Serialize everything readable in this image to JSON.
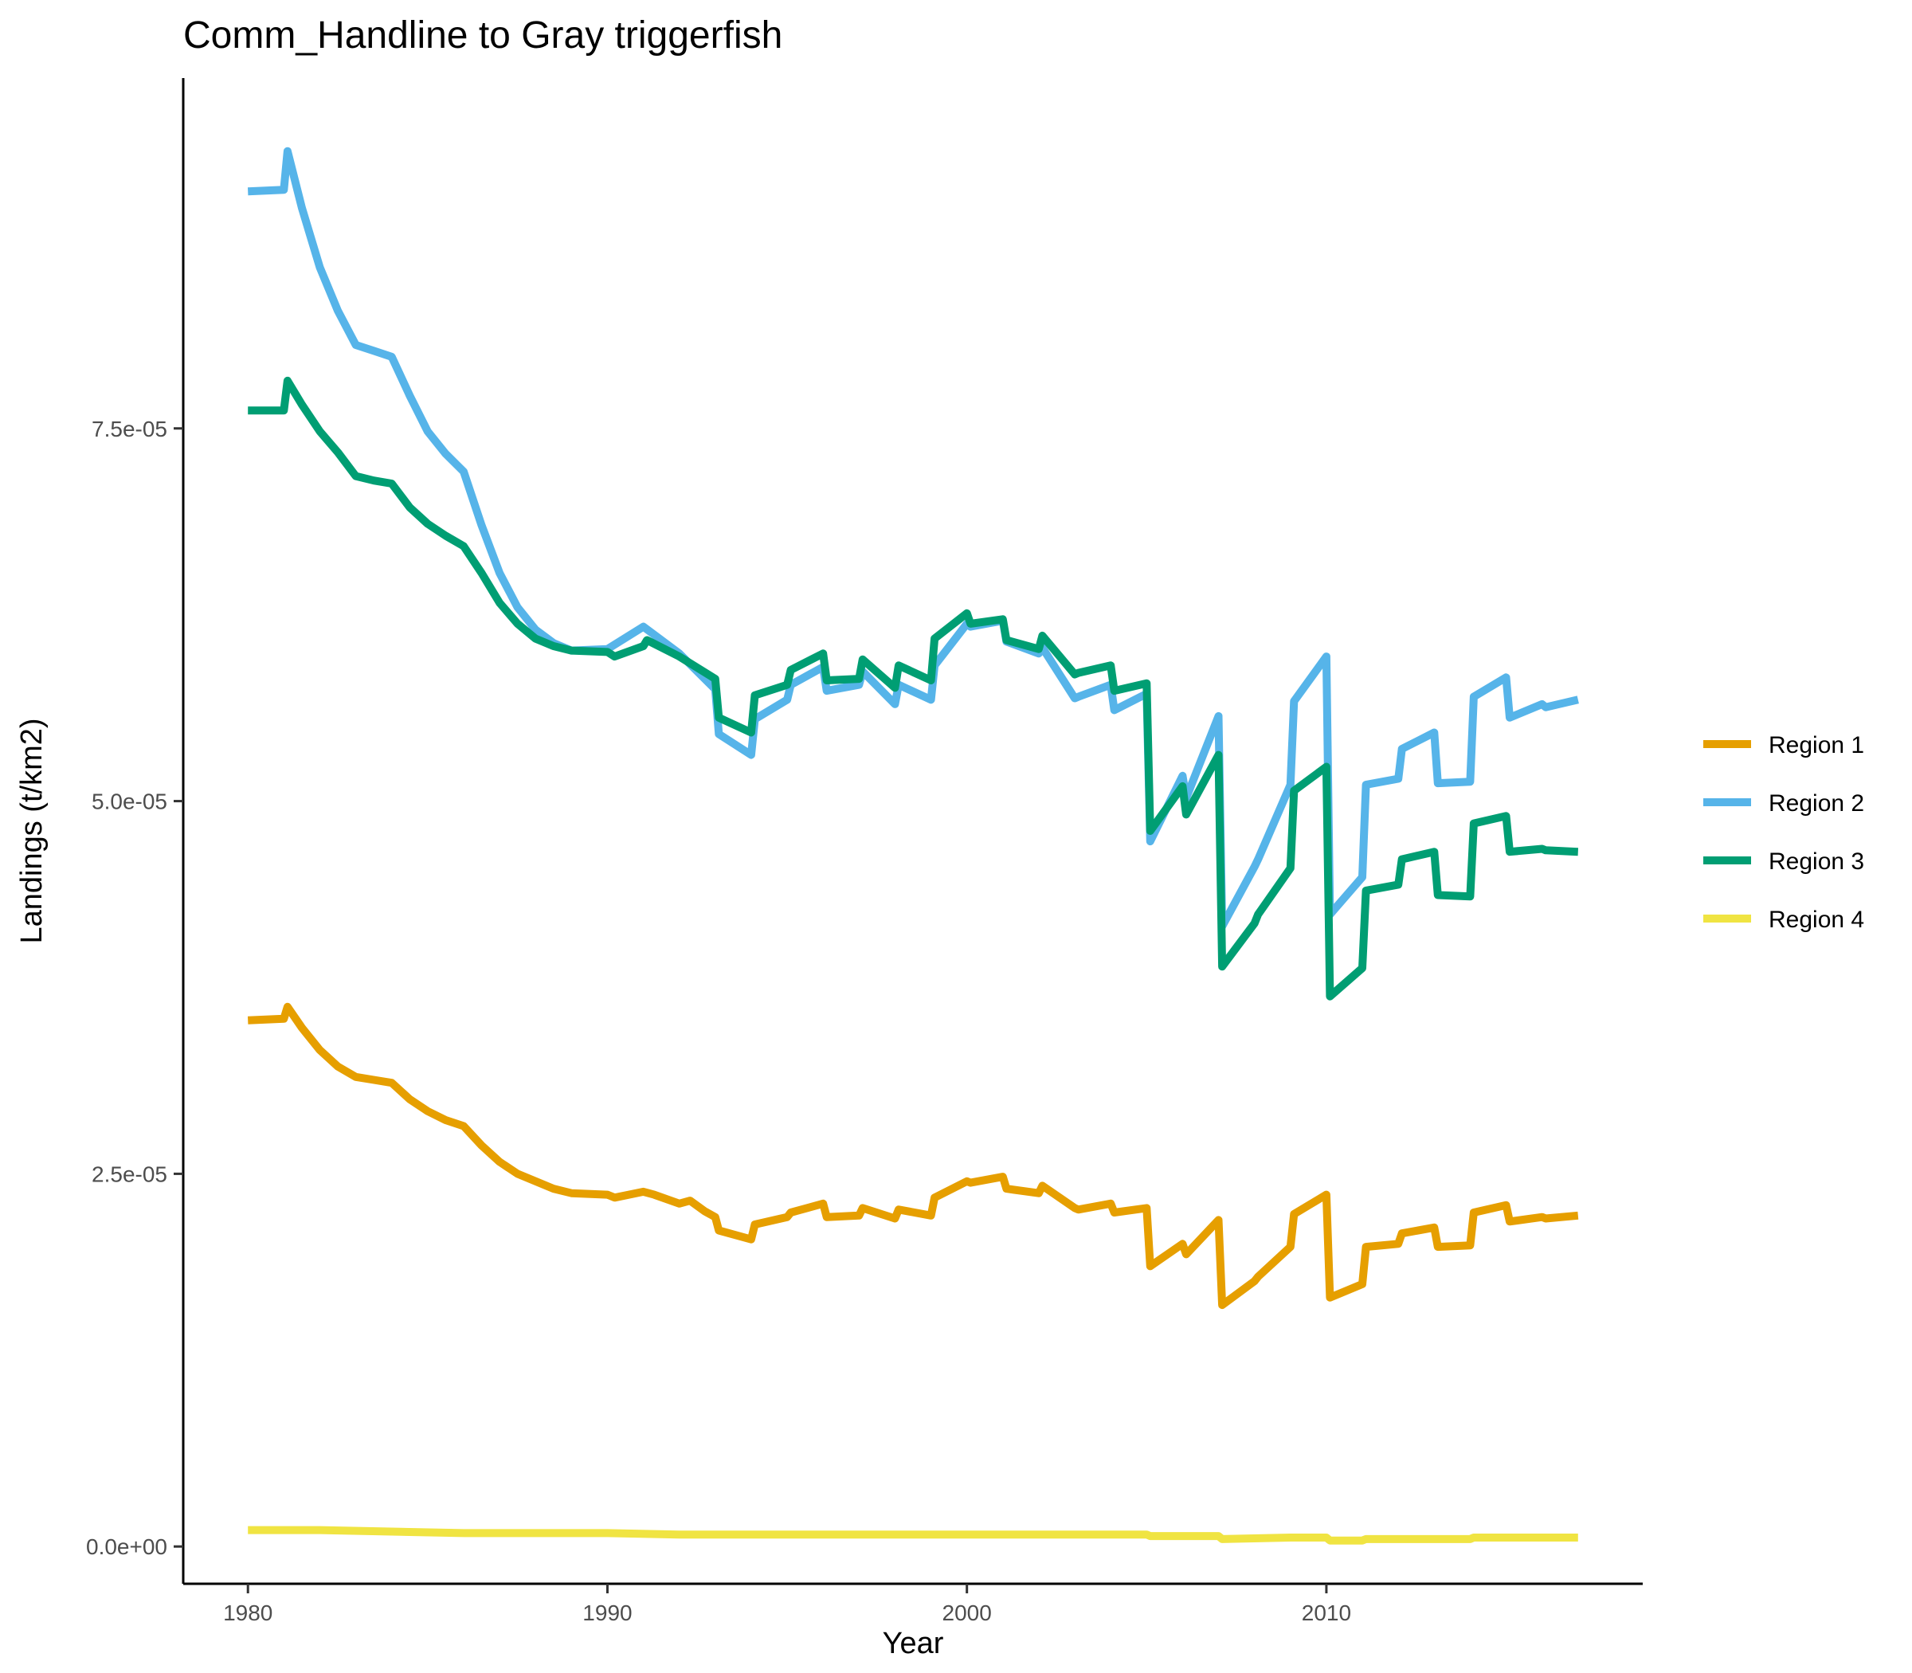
{
  "chart_data": {
    "type": "line",
    "title": "Comm_Handline to Gray triggerfish",
    "xlabel": "Year",
    "ylabel": "Landings (t/km2)",
    "xlim": [
      1978.2,
      2018.8
    ],
    "ylim": [
      -2.5e-06,
      9.85e-05
    ],
    "x_ticks": [
      {
        "value": 1980,
        "label": "1980"
      },
      {
        "value": 1990,
        "label": "1990"
      },
      {
        "value": 2000,
        "label": "2000"
      },
      {
        "value": 2010,
        "label": "2010"
      }
    ],
    "y_ticks": [
      {
        "value": 0,
        "label": "0.0e+00"
      },
      {
        "value": 2.5e-05,
        "label": "2.5e-05"
      },
      {
        "value": 5e-05,
        "label": "5.0e-05"
      },
      {
        "value": 7.5e-05,
        "label": "7.5e-05"
      }
    ],
    "grid": false,
    "legend_position": "right",
    "series": [
      {
        "name": "Region 1",
        "color": "#E69F00",
        "points": [
          [
            1980,
            3.53e-05
          ],
          [
            1981,
            3.54e-05
          ],
          [
            1981.1,
            3.62e-05
          ],
          [
            1981.5,
            3.48e-05
          ],
          [
            1982,
            3.33e-05
          ],
          [
            1982.5,
            3.22e-05
          ],
          [
            1983,
            3.15e-05
          ],
          [
            1983.5,
            3.13e-05
          ],
          [
            1984,
            3.11e-05
          ],
          [
            1984.5,
            3e-05
          ],
          [
            1985,
            2.92e-05
          ],
          [
            1985.5,
            2.86e-05
          ],
          [
            1986,
            2.82e-05
          ],
          [
            1986.5,
            2.69e-05
          ],
          [
            1987,
            2.58e-05
          ],
          [
            1987.5,
            2.5e-05
          ],
          [
            1988,
            2.45e-05
          ],
          [
            1988.5,
            2.4e-05
          ],
          [
            1989,
            2.37e-05
          ],
          [
            1990,
            2.36e-05
          ],
          [
            1990.2,
            2.34e-05
          ],
          [
            1991,
            2.38e-05
          ],
          [
            1991.3,
            2.36e-05
          ],
          [
            1992,
            2.3e-05
          ],
          [
            1992.3,
            2.32e-05
          ],
          [
            1992.7,
            2.25e-05
          ],
          [
            1993,
            2.21e-05
          ],
          [
            1993.1,
            2.12e-05
          ],
          [
            1994,
            2.06e-05
          ],
          [
            1994.1,
            2.16e-05
          ],
          [
            1995,
            2.21e-05
          ],
          [
            1995.1,
            2.24e-05
          ],
          [
            1996,
            2.3e-05
          ],
          [
            1996.1,
            2.21e-05
          ],
          [
            1997,
            2.22e-05
          ],
          [
            1997.1,
            2.27e-05
          ],
          [
            1998,
            2.2e-05
          ],
          [
            1998.1,
            2.26e-05
          ],
          [
            1999,
            2.22e-05
          ],
          [
            1999.1,
            2.34e-05
          ],
          [
            2000,
            2.45e-05
          ],
          [
            2000.1,
            2.44e-05
          ],
          [
            2001,
            2.48e-05
          ],
          [
            2001.1,
            2.4e-05
          ],
          [
            2002,
            2.37e-05
          ],
          [
            2002.1,
            2.42e-05
          ],
          [
            2003,
            2.27e-05
          ],
          [
            2003.1,
            2.26e-05
          ],
          [
            2004,
            2.3e-05
          ],
          [
            2004.1,
            2.24e-05
          ],
          [
            2005,
            2.27e-05
          ],
          [
            2005.1,
            1.88e-05
          ],
          [
            2006,
            2.03e-05
          ],
          [
            2006.1,
            1.96e-05
          ],
          [
            2007,
            2.19e-05
          ],
          [
            2007.1,
            1.62e-05
          ],
          [
            2008,
            1.78e-05
          ],
          [
            2008.1,
            1.81e-05
          ],
          [
            2009,
            2.01e-05
          ],
          [
            2009.1,
            2.23e-05
          ],
          [
            2010,
            2.36e-05
          ],
          [
            2010.1,
            1.67e-05
          ],
          [
            2011,
            1.76e-05
          ],
          [
            2011.1,
            2.01e-05
          ],
          [
            2012,
            2.03e-05
          ],
          [
            2012.1,
            2.1e-05
          ],
          [
            2013,
            2.14e-05
          ],
          [
            2013.1,
            2.01e-05
          ],
          [
            2014,
            2.02e-05
          ],
          [
            2014.1,
            2.24e-05
          ],
          [
            2015,
            2.29e-05
          ],
          [
            2015.1,
            2.18e-05
          ],
          [
            2016,
            2.21e-05
          ],
          [
            2016.1,
            2.2e-05
          ],
          [
            2017,
            2.22e-05
          ]
        ]
      },
      {
        "name": "Region 2",
        "color": "#56B4E9",
        "points": [
          [
            1980,
            9.09e-05
          ],
          [
            1981,
            9.1e-05
          ],
          [
            1981.1,
            9.36e-05
          ],
          [
            1981.5,
            8.98e-05
          ],
          [
            1982,
            8.58e-05
          ],
          [
            1982.5,
            8.29e-05
          ],
          [
            1983,
            8.06e-05
          ],
          [
            1983.5,
            8.02e-05
          ],
          [
            1984,
            7.98e-05
          ],
          [
            1984.5,
            7.72e-05
          ],
          [
            1985,
            7.48e-05
          ],
          [
            1985.5,
            7.33e-05
          ],
          [
            1986,
            7.21e-05
          ],
          [
            1986.5,
            6.85e-05
          ],
          [
            1987,
            6.53e-05
          ],
          [
            1987.5,
            6.3e-05
          ],
          [
            1988,
            6.15e-05
          ],
          [
            1988.5,
            6.06e-05
          ],
          [
            1989,
            6.01e-05
          ],
          [
            1990,
            6.02e-05
          ],
          [
            1991,
            6.17e-05
          ],
          [
            1992,
            5.99e-05
          ],
          [
            1993,
            5.75e-05
          ],
          [
            1993.1,
            5.45e-05
          ],
          [
            1994,
            5.31e-05
          ],
          [
            1994.1,
            5.55e-05
          ],
          [
            1995,
            5.68e-05
          ],
          [
            1995.1,
            5.78e-05
          ],
          [
            1996,
            5.9e-05
          ],
          [
            1996.1,
            5.74e-05
          ],
          [
            1997,
            5.78e-05
          ],
          [
            1997.1,
            5.87e-05
          ],
          [
            1998,
            5.65e-05
          ],
          [
            1998.1,
            5.78e-05
          ],
          [
            1999,
            5.68e-05
          ],
          [
            1999.1,
            5.91e-05
          ],
          [
            2000,
            6.19e-05
          ],
          [
            2000.1,
            6.17e-05
          ],
          [
            2001,
            6.21e-05
          ],
          [
            2001.1,
            6.07e-05
          ],
          [
            2002,
            5.99e-05
          ],
          [
            2002.1,
            6.03e-05
          ],
          [
            2003,
            5.69e-05
          ],
          [
            2003.1,
            5.7e-05
          ],
          [
            2004,
            5.78e-05
          ],
          [
            2004.1,
            5.61e-05
          ],
          [
            2005,
            5.72e-05
          ],
          [
            2005.1,
            4.73e-05
          ],
          [
            2006,
            5.17e-05
          ],
          [
            2006.1,
            5.02e-05
          ],
          [
            2007,
            5.57e-05
          ],
          [
            2007.1,
            4.16e-05
          ],
          [
            2008,
            4.56e-05
          ],
          [
            2008.1,
            4.61e-05
          ],
          [
            2009,
            5.11e-05
          ],
          [
            2009.1,
            5.67e-05
          ],
          [
            2010,
            5.97e-05
          ],
          [
            2010.1,
            4.24e-05
          ],
          [
            2011,
            4.49e-05
          ],
          [
            2011.1,
            5.11e-05
          ],
          [
            2012,
            5.15e-05
          ],
          [
            2012.1,
            5.35e-05
          ],
          [
            2013,
            5.46e-05
          ],
          [
            2013.1,
            5.12e-05
          ],
          [
            2014,
            5.13e-05
          ],
          [
            2014.1,
            5.7e-05
          ],
          [
            2015,
            5.83e-05
          ],
          [
            2015.1,
            5.56e-05
          ],
          [
            2016,
            5.65e-05
          ],
          [
            2016.1,
            5.63e-05
          ],
          [
            2017,
            5.68e-05
          ]
        ]
      },
      {
        "name": "Region 3",
        "color": "#009E73",
        "points": [
          [
            1980,
            7.62e-05
          ],
          [
            1981,
            7.62e-05
          ],
          [
            1981.1,
            7.82e-05
          ],
          [
            1981.5,
            7.66e-05
          ],
          [
            1982,
            7.48e-05
          ],
          [
            1982.5,
            7.34e-05
          ],
          [
            1983,
            7.18e-05
          ],
          [
            1983.5,
            7.15e-05
          ],
          [
            1984,
            7.13e-05
          ],
          [
            1984.5,
            6.97e-05
          ],
          [
            1985,
            6.86e-05
          ],
          [
            1985.5,
            6.78e-05
          ],
          [
            1986,
            6.71e-05
          ],
          [
            1986.5,
            6.53e-05
          ],
          [
            1987,
            6.33e-05
          ],
          [
            1987.5,
            6.19e-05
          ],
          [
            1988,
            6.09e-05
          ],
          [
            1988.5,
            6.04e-05
          ],
          [
            1989,
            6.01e-05
          ],
          [
            1990,
            6e-05
          ],
          [
            1990.2,
            5.97e-05
          ],
          [
            1991,
            6.04e-05
          ],
          [
            1991.1,
            6.08e-05
          ],
          [
            1992,
            5.97e-05
          ],
          [
            1993,
            5.82e-05
          ],
          [
            1993.1,
            5.56e-05
          ],
          [
            1994,
            5.46e-05
          ],
          [
            1994.1,
            5.71e-05
          ],
          [
            1995,
            5.78e-05
          ],
          [
            1995.1,
            5.88e-05
          ],
          [
            1996,
            5.99e-05
          ],
          [
            1996.1,
            5.81e-05
          ],
          [
            1997,
            5.82e-05
          ],
          [
            1997.1,
            5.95e-05
          ],
          [
            1998,
            5.76e-05
          ],
          [
            1998.1,
            5.91e-05
          ],
          [
            1999,
            5.81e-05
          ],
          [
            1999.1,
            6.09e-05
          ],
          [
            2000,
            6.26e-05
          ],
          [
            2000.1,
            6.19e-05
          ],
          [
            2001,
            6.22e-05
          ],
          [
            2001.1,
            6.08e-05
          ],
          [
            2002,
            6.02e-05
          ],
          [
            2002.1,
            6.11e-05
          ],
          [
            2003,
            5.85e-05
          ],
          [
            2003.1,
            5.86e-05
          ],
          [
            2004,
            5.91e-05
          ],
          [
            2004.1,
            5.74e-05
          ],
          [
            2005,
            5.79e-05
          ],
          [
            2005.1,
            4.8e-05
          ],
          [
            2006,
            5.1e-05
          ],
          [
            2006.1,
            4.91e-05
          ],
          [
            2007,
            5.31e-05
          ],
          [
            2007.1,
            3.89e-05
          ],
          [
            2008,
            4.18e-05
          ],
          [
            2008.1,
            4.24e-05
          ],
          [
            2009,
            4.55e-05
          ],
          [
            2009.1,
            5.07e-05
          ],
          [
            2010,
            5.23e-05
          ],
          [
            2010.1,
            3.69e-05
          ],
          [
            2011,
            3.88e-05
          ],
          [
            2011.1,
            4.4e-05
          ],
          [
            2012,
            4.44e-05
          ],
          [
            2012.1,
            4.61e-05
          ],
          [
            2013,
            4.66e-05
          ],
          [
            2013.1,
            4.37e-05
          ],
          [
            2014,
            4.36e-05
          ],
          [
            2014.1,
            4.85e-05
          ],
          [
            2015,
            4.9e-05
          ],
          [
            2015.1,
            4.66e-05
          ],
          [
            2016,
            4.68e-05
          ],
          [
            2016.1,
            4.67e-05
          ],
          [
            2017,
            4.66e-05
          ]
        ]
      },
      {
        "name": "Region 4",
        "color": "#F0E442",
        "points": [
          [
            1980,
            1.1e-06
          ],
          [
            1982,
            1.1e-06
          ],
          [
            1984,
            1e-06
          ],
          [
            1986,
            9e-07
          ],
          [
            1988,
            9e-07
          ],
          [
            1990,
            9e-07
          ],
          [
            1992,
            8e-07
          ],
          [
            1994,
            8e-07
          ],
          [
            1996,
            8e-07
          ],
          [
            1998,
            8e-07
          ],
          [
            2000,
            8e-07
          ],
          [
            2002,
            8e-07
          ],
          [
            2004,
            8e-07
          ],
          [
            2005,
            8e-07
          ],
          [
            2005.1,
            7e-07
          ],
          [
            2007,
            7e-07
          ],
          [
            2007.1,
            5e-07
          ],
          [
            2009,
            6e-07
          ],
          [
            2010,
            6e-07
          ],
          [
            2010.1,
            4e-07
          ],
          [
            2011,
            4e-07
          ],
          [
            2011.1,
            5e-07
          ],
          [
            2014,
            5e-07
          ],
          [
            2014.1,
            6e-07
          ],
          [
            2017,
            6e-07
          ]
        ]
      }
    ]
  }
}
